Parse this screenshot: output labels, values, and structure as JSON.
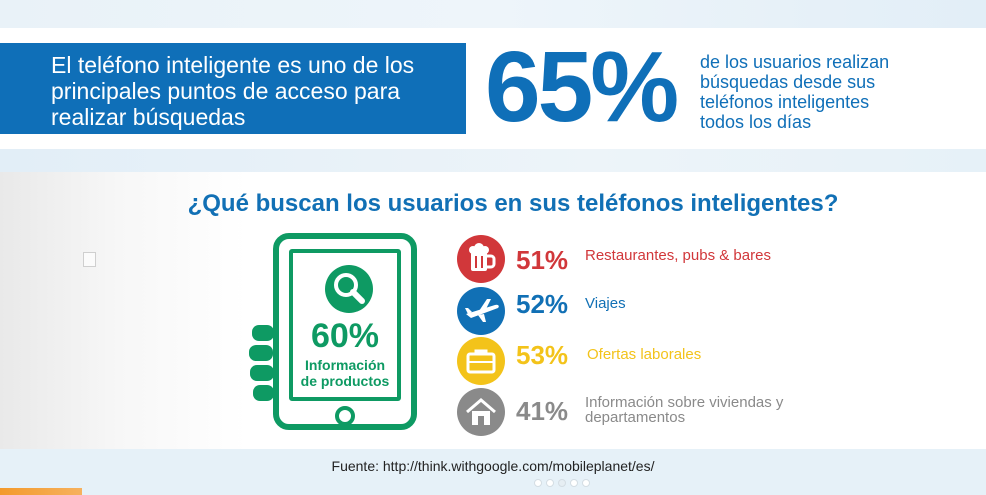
{
  "headline": {
    "line1": "El teléfono inteligente es uno de los",
    "line2": "principales puntos de acceso para",
    "line3": "realizar búsquedas"
  },
  "highlight": {
    "percent": "65%",
    "caption_line1": "de los usuarios realizan",
    "caption_line2": "búsquedas desde sus",
    "caption_line3": "teléfonos inteligentes",
    "caption_line4": "todos los días"
  },
  "question": "¿Qué buscan los usuarios en sus teléfonos inteligentes?",
  "phone": {
    "percent": "60%",
    "label_line1": "Información",
    "label_line2": "de productos",
    "icon": "search-icon"
  },
  "stats": [
    {
      "percent": "51%",
      "label_line1": "Restaurantes, pubs & bares",
      "label_line2": "",
      "icon": "beer-mug-icon",
      "color": "#d1373a"
    },
    {
      "percent": "52%",
      "label_line1": "Viajes",
      "label_line2": "",
      "icon": "airplane-icon",
      "color": "#1170b5"
    },
    {
      "percent": "53%",
      "label_line1": "Ofertas laborales",
      "label_line2": "",
      "icon": "briefcase-icon",
      "color": "#f3c31a"
    },
    {
      "percent": "41%",
      "label_line1": "Información sobre viviendas y",
      "label_line2": "departamentos",
      "icon": "house-icon",
      "color": "#8a8a8a"
    }
  ],
  "source": "Fuente: http://think.withgoogle.com/mobileplanet/es/",
  "colors": {
    "brand_blue": "#0f6fb8",
    "green": "#0e9a63",
    "red": "#d1373a",
    "yellow": "#f3c31a",
    "gray": "#8a8a8a"
  }
}
